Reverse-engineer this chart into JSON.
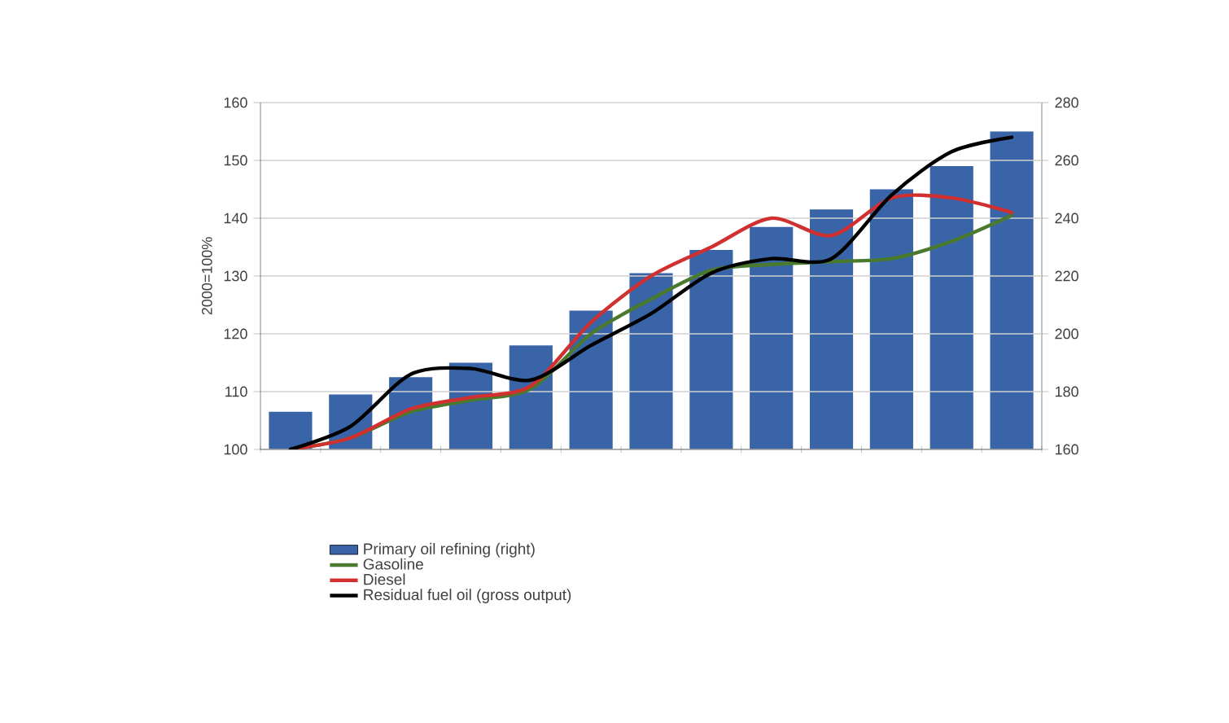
{
  "chart_data": {
    "type": "bar",
    "ylabel": "2000=100%",
    "categories": [
      null,
      null,
      null,
      null,
      null,
      null,
      null,
      null,
      null,
      null,
      null,
      null,
      null
    ],
    "series": [
      {
        "name": "Primary oil refining (right)",
        "axis": "y2",
        "color": "#3a64a8",
        "values": [
          173,
          179,
          185,
          190,
          196,
          208,
          221,
          229,
          237,
          243,
          250,
          258,
          270
        ]
      },
      {
        "name": "Gasoline",
        "type": "line",
        "color": "#4a7a2e",
        "values": [
          100,
          102,
          106.5,
          108.5,
          110.5,
          120,
          126,
          131,
          132,
          132.5,
          133,
          136,
          140.5
        ]
      },
      {
        "name": "Diesel",
        "type": "line",
        "color": "#d03030",
        "values": [
          100,
          102,
          107,
          109,
          111,
          122,
          130,
          135,
          140,
          137,
          143.5,
          143.5,
          141
        ]
      },
      {
        "name": "Residual fuel oil (gross output)",
        "type": "line",
        "color": "#000000",
        "values": [
          100,
          104,
          113,
          114,
          112,
          118,
          123.5,
          130.5,
          133,
          133,
          144,
          151.5,
          154
        ]
      }
    ],
    "ylim": [
      100,
      160
    ],
    "yticks": [
      100,
      110,
      120,
      130,
      140,
      150,
      160
    ],
    "y2lim": [
      160,
      280
    ],
    "y2ticks": [
      160,
      180,
      200,
      220,
      240,
      260,
      280
    ],
    "grid": "y",
    "legend": "bottom",
    "tick_labels": "y"
  }
}
